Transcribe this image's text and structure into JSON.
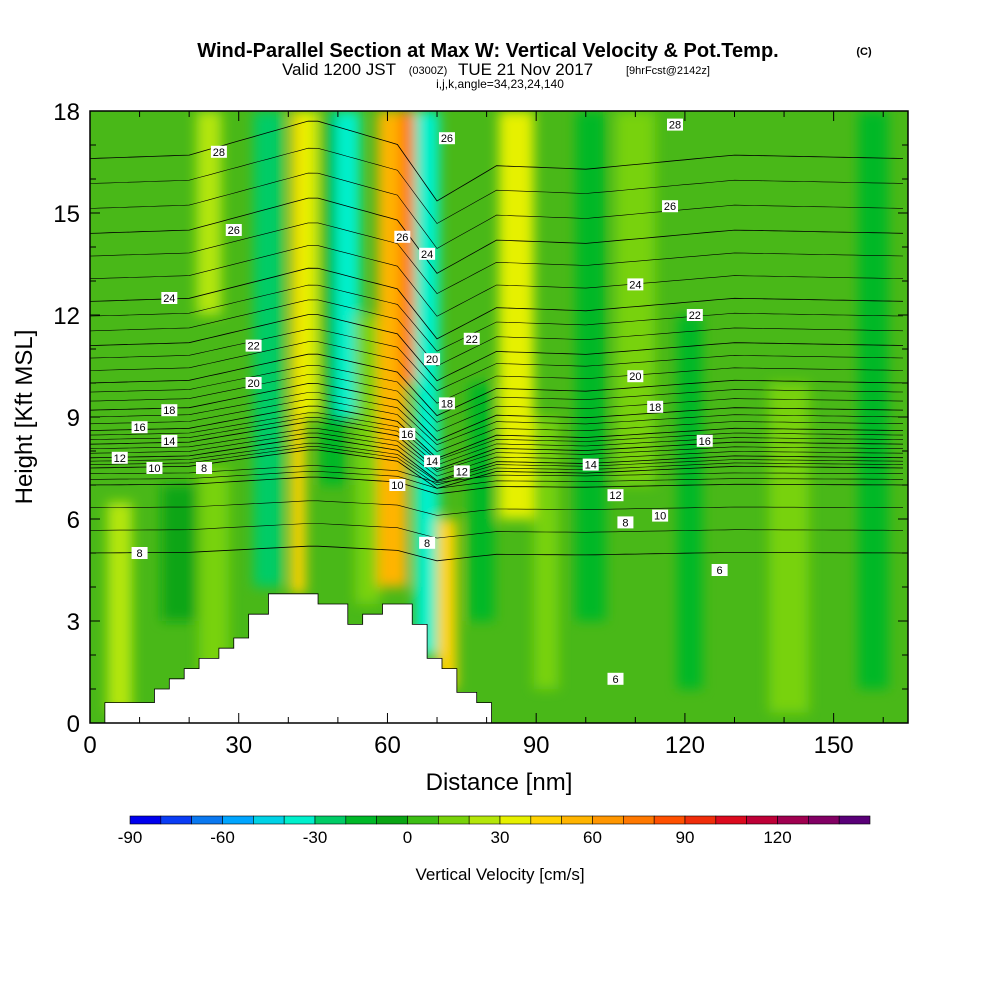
{
  "title": {
    "main": "Wind-Parallel Section at Max W: Vertical Velocity & Pot.Temp.",
    "mark": "(C)",
    "valid_prefix": "Valid 1200 JST",
    "valid_utc": "(0300Z)",
    "valid_date": "TUE 21 Nov 2017",
    "forecast": "[9hrFcst@2142z]",
    "indices": "i,j,k,angle=34,23,24,140"
  },
  "chart_data": {
    "type": "heatmap",
    "xlabel": "Distance [nm]",
    "ylabel": "Height [Kft MSL]",
    "xlim": [
      0,
      165
    ],
    "ylim": [
      0,
      18
    ],
    "x_ticks": [
      0,
      30,
      60,
      90,
      120,
      150
    ],
    "y_ticks": [
      0,
      3,
      6,
      9,
      12,
      15,
      18
    ],
    "grid": false,
    "terrain": [
      [
        3,
        0.6
      ],
      [
        13,
        0.6
      ],
      [
        13,
        1.0
      ],
      [
        16,
        1.0
      ],
      [
        16,
        1.3
      ],
      [
        19,
        1.3
      ],
      [
        19,
        1.6
      ],
      [
        22,
        1.6
      ],
      [
        22,
        1.9
      ],
      [
        26,
        1.9
      ],
      [
        26,
        2.2
      ],
      [
        29,
        2.2
      ],
      [
        29,
        2.5
      ],
      [
        32,
        2.5
      ],
      [
        32,
        3.2
      ],
      [
        36,
        3.2
      ],
      [
        36,
        3.8
      ],
      [
        46,
        3.8
      ],
      [
        46,
        3.5
      ],
      [
        52,
        3.5
      ],
      [
        52,
        2.9
      ],
      [
        55,
        2.9
      ],
      [
        55,
        3.2
      ],
      [
        59,
        3.2
      ],
      [
        59,
        3.5
      ],
      [
        65,
        3.5
      ],
      [
        65,
        2.9
      ],
      [
        68,
        2.9
      ],
      [
        68,
        1.9
      ],
      [
        71,
        1.9
      ],
      [
        71,
        1.6
      ],
      [
        74,
        1.6
      ],
      [
        74,
        0.9
      ],
      [
        78,
        0.9
      ],
      [
        78,
        0.6
      ],
      [
        81,
        0.6
      ],
      [
        81,
        0.3
      ]
    ],
    "w_bands": [
      {
        "x": 6,
        "w": 5,
        "h0": 0.3,
        "h1": 6.5,
        "value": 20
      },
      {
        "x": 18,
        "w": 7,
        "h0": 3.0,
        "h1": 7.0,
        "value": -10
      },
      {
        "x": 25,
        "w": 6,
        "h0": 1.0,
        "h1": 7.5,
        "value": 12
      },
      {
        "x": 24,
        "w": 5,
        "h0": 12.0,
        "h1": 18.0,
        "value": 22
      },
      {
        "x": 36,
        "w": 6,
        "h0": 4.0,
        "h1": 18.0,
        "value": -22
      },
      {
        "x": 42,
        "w": 3,
        "h0": 3.8,
        "h1": 18.0,
        "value": 48
      },
      {
        "x": 44,
        "w": 4,
        "h0": 9.0,
        "h1": 18.0,
        "value": 32
      },
      {
        "x": 49,
        "w": 5,
        "h0": 7.0,
        "h1": 18.0,
        "value": -12
      },
      {
        "x": 52,
        "w": 5,
        "h0": 9.0,
        "h1": 18.0,
        "value": -38
      },
      {
        "x": 56,
        "w": 5,
        "h0": 3.5,
        "h1": 12.0,
        "value": 16
      },
      {
        "x": 61,
        "w": 6,
        "h0": 4.0,
        "h1": 18.0,
        "value": 50
      },
      {
        "x": 64,
        "w": 3,
        "h0": 10.0,
        "h1": 18.0,
        "value": 72
      },
      {
        "x": 68,
        "w": 5,
        "h0": 2.0,
        "h1": 18.0,
        "value": -40
      },
      {
        "x": 72,
        "w": 4,
        "h0": 1.0,
        "h1": 6.0,
        "value": 40
      },
      {
        "x": 79,
        "w": 5,
        "h0": 3.0,
        "h1": 10.0,
        "value": -14
      },
      {
        "x": 86,
        "w": 7,
        "h0": 6.0,
        "h1": 18.0,
        "value": 34
      },
      {
        "x": 92,
        "w": 5,
        "h0": 1.0,
        "h1": 9.0,
        "value": 16
      },
      {
        "x": 101,
        "w": 6,
        "h0": 3.0,
        "h1": 18.0,
        "value": -12
      },
      {
        "x": 110,
        "w": 8,
        "h0": 7.0,
        "h1": 18.0,
        "value": 16
      },
      {
        "x": 121,
        "w": 5,
        "h0": 1.0,
        "h1": 12.0,
        "value": -14
      },
      {
        "x": 141,
        "w": 8,
        "h0": 0.3,
        "h1": 10.0,
        "value": 10
      },
      {
        "x": 158,
        "w": 6,
        "h0": 1.0,
        "h1": 18.0,
        "value": -12
      }
    ],
    "theta_levels": [
      6,
      8,
      10,
      12,
      14,
      16,
      18,
      20,
      22,
      24,
      26,
      28
    ],
    "contour_labels": [
      {
        "value": "28",
        "x": 26,
        "y": 16.8
      },
      {
        "value": "26",
        "x": 29,
        "y": 14.5
      },
      {
        "value": "24",
        "x": 16,
        "y": 12.5
      },
      {
        "value": "22",
        "x": 33,
        "y": 11.1
      },
      {
        "value": "20",
        "x": 33,
        "y": 10.0
      },
      {
        "value": "18",
        "x": 16,
        "y": 9.2
      },
      {
        "value": "16",
        "x": 10,
        "y": 8.7
      },
      {
        "value": "14",
        "x": 16,
        "y": 8.3
      },
      {
        "value": "12",
        "x": 6,
        "y": 7.8
      },
      {
        "value": "10",
        "x": 13,
        "y": 7.5
      },
      {
        "value": "8",
        "x": 23,
        "y": 7.5
      },
      {
        "value": "8",
        "x": 10,
        "y": 5.0
      },
      {
        "value": "26",
        "x": 72,
        "y": 17.2
      },
      {
        "value": "26",
        "x": 63,
        "y": 14.3
      },
      {
        "value": "24",
        "x": 68,
        "y": 13.8
      },
      {
        "value": "22",
        "x": 77,
        "y": 11.3
      },
      {
        "value": "20",
        "x": 69,
        "y": 10.7
      },
      {
        "value": "18",
        "x": 72,
        "y": 9.4
      },
      {
        "value": "16",
        "x": 64,
        "y": 8.5
      },
      {
        "value": "14",
        "x": 69,
        "y": 7.7
      },
      {
        "value": "12",
        "x": 75,
        "y": 7.4
      },
      {
        "value": "10",
        "x": 62,
        "y": 7.0
      },
      {
        "value": "8",
        "x": 68,
        "y": 5.3
      },
      {
        "value": "28",
        "x": 118,
        "y": 17.6
      },
      {
        "value": "26",
        "x": 117,
        "y": 15.2
      },
      {
        "value": "24",
        "x": 110,
        "y": 12.9
      },
      {
        "value": "22",
        "x": 122,
        "y": 12.0
      },
      {
        "value": "20",
        "x": 110,
        "y": 10.2
      },
      {
        "value": "18",
        "x": 114,
        "y": 9.3
      },
      {
        "value": "16",
        "x": 124,
        "y": 8.3
      },
      {
        "value": "14",
        "x": 101,
        "y": 7.6
      },
      {
        "value": "12",
        "x": 106,
        "y": 6.7
      },
      {
        "value": "10",
        "x": 115,
        "y": 6.1
      },
      {
        "value": "8",
        "x": 108,
        "y": 5.9
      },
      {
        "value": "6",
        "x": 127,
        "y": 4.5
      },
      {
        "value": "6",
        "x": 106,
        "y": 1.3
      }
    ]
  },
  "colorbar": {
    "label": "Vertical Velocity [cm/s]",
    "colors": [
      "#0000ee",
      "#0a3cf5",
      "#0a78f0",
      "#00a5ff",
      "#00d2e6",
      "#00f0cc",
      "#00cc66",
      "#00b828",
      "#0aa514",
      "#3cbe14",
      "#78d20a",
      "#b4e60a",
      "#e6f000",
      "#ffd200",
      "#ffb400",
      "#ff9600",
      "#ff7800",
      "#ff5000",
      "#f02d0a",
      "#dc0a1e",
      "#be0037",
      "#a00050",
      "#820064",
      "#5a0078"
    ],
    "min": -90,
    "step": 10,
    "tick_labels": [
      "-90",
      "-60",
      "-30",
      "0",
      "30",
      "60",
      "90",
      "120"
    ]
  }
}
